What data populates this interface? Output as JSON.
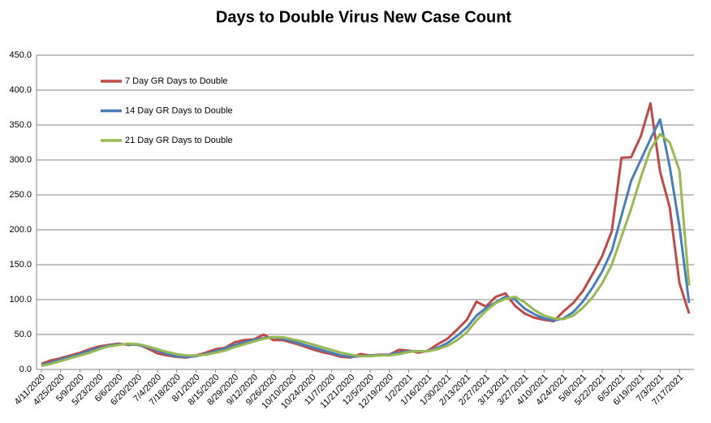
{
  "chart_data": {
    "type": "line",
    "title": "Days to Double Virus New Case Count",
    "categories": [
      "4/11/2020",
      null,
      "4/25/2020",
      null,
      "5/9/2020",
      null,
      "5/23/2020",
      null,
      "6/6/2020",
      null,
      "6/20/2020",
      null,
      "7/4/2020",
      null,
      "7/18/2020",
      null,
      "8/1/2020",
      null,
      "8/15/2020",
      null,
      "8/29/2020",
      null,
      "9/12/2020",
      null,
      "9/26/2020",
      null,
      "10/10/2020",
      null,
      "10/24/2020",
      null,
      "11/7/2020",
      null,
      "11/21/2020",
      null,
      "12/5/2020",
      null,
      "12/19/2020",
      null,
      "1/2/2021",
      null,
      "1/16/2021",
      null,
      "1/30/2021",
      null,
      "2/13/2021",
      null,
      "2/27/2021",
      null,
      "3/13/2021",
      null,
      "3/27/2021",
      null,
      "4/10/2021",
      null,
      "4/24/2021",
      null,
      "5/8/2021",
      null,
      "5/22/2021",
      null,
      "6/5/2021",
      null,
      "6/19/2021",
      null,
      "7/3/2021",
      null,
      "7/17/2021",
      null
    ],
    "series": [
      {
        "name": "7 Day GR Days to Double",
        "color": "#be4b48",
        "values": [
          8,
          13,
          16,
          20,
          24,
          29,
          33,
          35,
          37,
          35,
          36,
          30,
          23,
          20,
          18,
          17,
          20,
          24,
          29,
          31,
          39,
          42,
          43,
          50,
          42,
          42,
          38,
          34,
          29,
          25,
          22,
          18,
          17,
          22,
          20,
          21,
          21,
          28,
          27,
          24,
          27,
          36,
          44,
          57,
          71,
          97,
          90,
          104,
          109,
          91,
          80,
          74,
          71,
          69,
          83,
          95,
          112,
          136,
          162,
          198,
          303,
          304,
          334,
          381,
          283,
          232,
          124,
          80
        ]
      },
      {
        "name": "14 Day GR Days to Double",
        "color": "#4a7ebb",
        "values": [
          6,
          10,
          14,
          18,
          22,
          27,
          31,
          34,
          36,
          36,
          35,
          32,
          27,
          22,
          19,
          18,
          19,
          22,
          26,
          30,
          35,
          39,
          42,
          45,
          46,
          44,
          40,
          36,
          32,
          28,
          24,
          20,
          18,
          19,
          20,
          20,
          21,
          24,
          26,
          26,
          26,
          31,
          38,
          48,
          60,
          77,
          88,
          96,
          104,
          100,
          87,
          79,
          73,
          70,
          73,
          82,
          97,
          117,
          140,
          170,
          220,
          270,
          300,
          330,
          358,
          290,
          205,
          95
        ]
      },
      {
        "name": "21 Day GR Days to Double",
        "color": "#98b954",
        "values": [
          5,
          8,
          12,
          16,
          20,
          24,
          29,
          33,
          35,
          37,
          36,
          33,
          29,
          25,
          22,
          20,
          20,
          21,
          24,
          27,
          32,
          36,
          40,
          44,
          46,
          46,
          43,
          40,
          36,
          32,
          28,
          24,
          21,
          19,
          19,
          20,
          20,
          22,
          25,
          26,
          26,
          29,
          34,
          42,
          53,
          70,
          84,
          95,
          101,
          104,
          96,
          85,
          77,
          73,
          72,
          77,
          88,
          103,
          123,
          150,
          190,
          230,
          275,
          315,
          337,
          325,
          285,
          120
        ]
      }
    ],
    "ylim": [
      0,
      450
    ],
    "yticks": [
      {
        "value": 0,
        "label": "0.0"
      },
      {
        "value": 50,
        "label": "50.0"
      },
      {
        "value": 100,
        "label": "100.0"
      },
      {
        "value": 150,
        "label": "150.0"
      },
      {
        "value": 200,
        "label": "200.0"
      },
      {
        "value": 250,
        "label": "250.0"
      },
      {
        "value": 300,
        "label": "300.0"
      },
      {
        "value": 350,
        "label": "350.0"
      },
      {
        "value": 400,
        "label": "400.0"
      },
      {
        "value": 450,
        "label": "450.0"
      }
    ],
    "grid": true,
    "legend": "upper left"
  }
}
